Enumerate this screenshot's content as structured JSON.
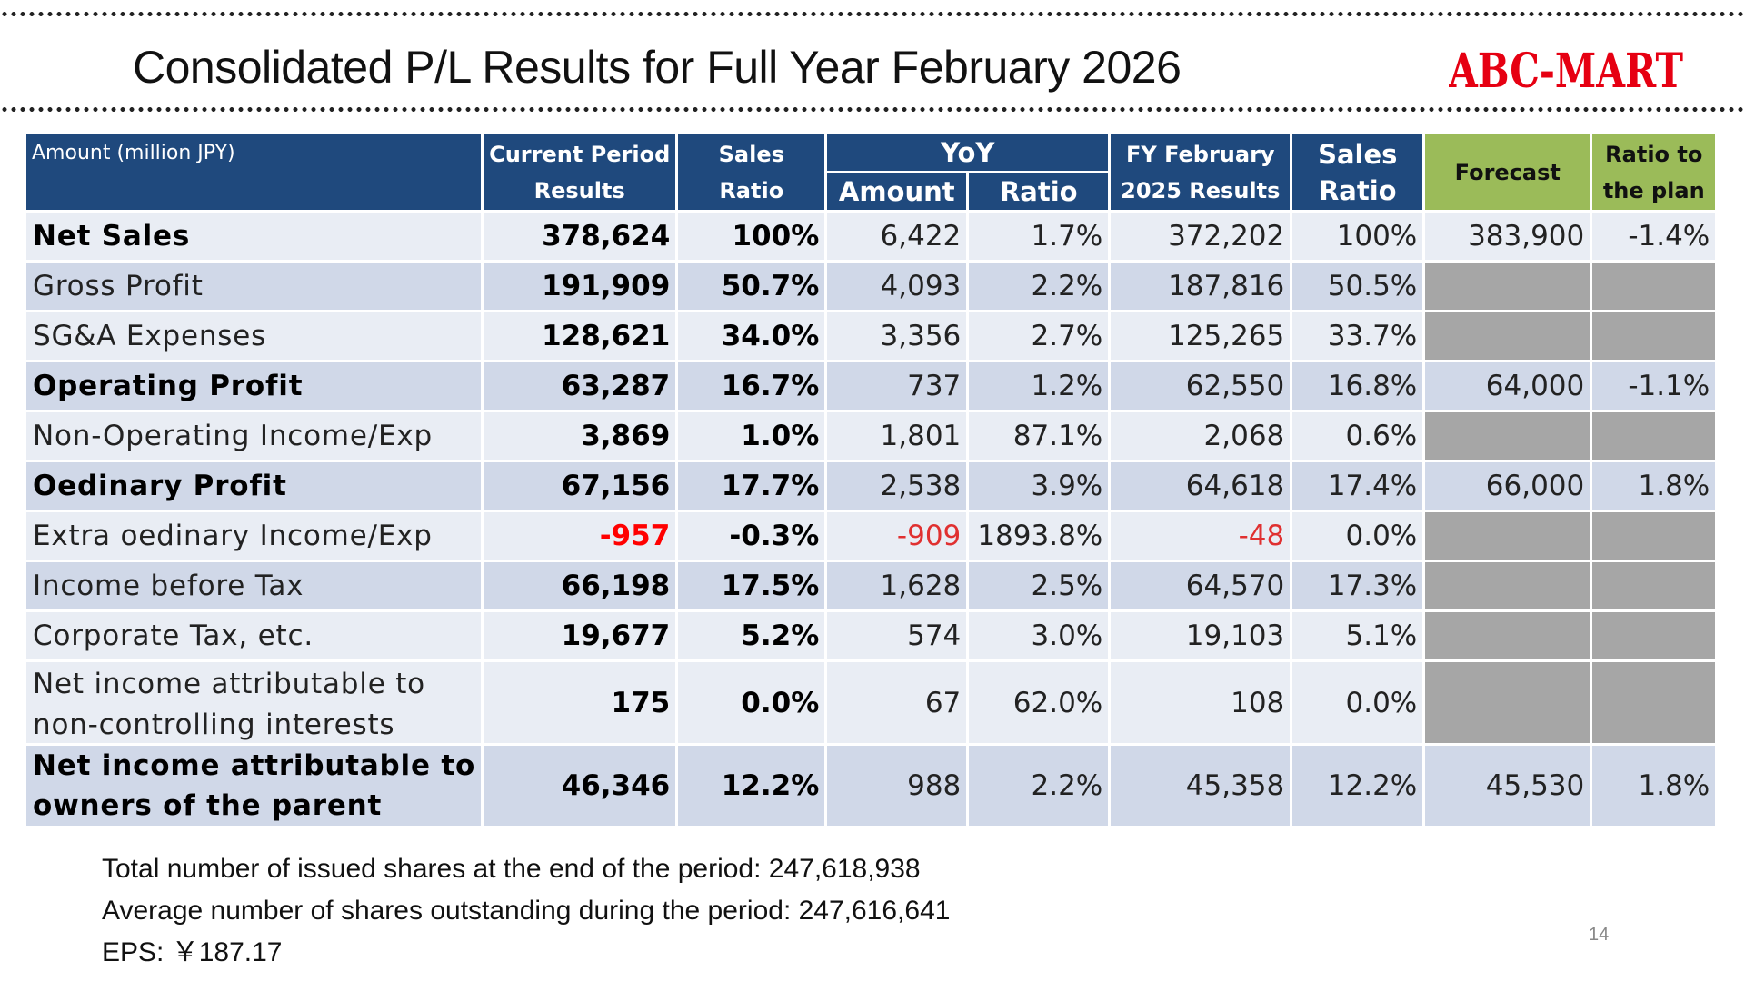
{
  "title": "Consolidated P/L Results for Full Year February 2026",
  "logo": {
    "text": "ABC-MART",
    "color": "#e60012"
  },
  "table": {
    "headers": {
      "amount_label": "Amount (million JPY)",
      "current_l1": "Current Period",
      "current_l2": "Results",
      "sales_ratio_l1": "Sales",
      "sales_ratio_l2": "Ratio",
      "yoy": "YoY",
      "yoy_amount": "Amount",
      "yoy_ratio": "Ratio",
      "fy_l1": "FY February",
      "fy_l2": "2025 Results",
      "sales_ratio2_l1": "Sales",
      "sales_ratio2_l2": "Ratio",
      "forecast": "Forecast",
      "ratio_plan_l1": "Ratio to",
      "ratio_plan_l2": "the plan"
    },
    "rows": [
      {
        "label": "Net Sales",
        "current": "378,624",
        "sales_ratio": "100%",
        "yoy_amount": "6,422",
        "yoy_ratio": "1.7%",
        "fy2025": "372,202",
        "fy_sales_ratio": "100%",
        "forecast": "383,900",
        "ratio_plan": "-1.4%"
      },
      {
        "label": "Gross Profit",
        "current": "191,909",
        "sales_ratio": "50.7%",
        "yoy_amount": "4,093",
        "yoy_ratio": "2.2%",
        "fy2025": "187,816",
        "fy_sales_ratio": "50.5%"
      },
      {
        "label": "SG&A Expenses",
        "current": "128,621",
        "sales_ratio": "34.0%",
        "yoy_amount": "3,356",
        "yoy_ratio": "2.7%",
        "fy2025": "125,265",
        "fy_sales_ratio": "33.7%"
      },
      {
        "label": "Operating Profit",
        "current": "63,287",
        "sales_ratio": "16.7%",
        "yoy_amount": "737",
        "yoy_ratio": "1.2%",
        "fy2025": "62,550",
        "fy_sales_ratio": "16.8%",
        "forecast": "64,000",
        "ratio_plan": "-1.1%"
      },
      {
        "label": "Non-Operating Income/Exp",
        "current": "3,869",
        "sales_ratio": "1.0%",
        "yoy_amount": "1,801",
        "yoy_ratio": "87.1%",
        "fy2025": "2,068",
        "fy_sales_ratio": "0.6%"
      },
      {
        "label": "Oedinary Profit",
        "current": "67,156",
        "sales_ratio": "17.7%",
        "yoy_amount": "2,538",
        "yoy_ratio": "3.9%",
        "fy2025": "64,618",
        "fy_sales_ratio": "17.4%",
        "forecast": "66,000",
        "ratio_plan": "1.8%"
      },
      {
        "label": "Extra oedinary Income/Exp",
        "current": "-957",
        "sales_ratio": "-0.3%",
        "yoy_amount": "-909",
        "yoy_ratio": "1893.8%",
        "fy2025": "-48",
        "fy_sales_ratio": "0.0%"
      },
      {
        "label": "Income before Tax",
        "current": "66,198",
        "sales_ratio": "17.5%",
        "yoy_amount": "1,628",
        "yoy_ratio": "2.5%",
        "fy2025": "64,570",
        "fy_sales_ratio": "17.3%"
      },
      {
        "label": "Corporate Tax, etc.",
        "current": "19,677",
        "sales_ratio": "5.2%",
        "yoy_amount": "574",
        "yoy_ratio": "3.0%",
        "fy2025": "19,103",
        "fy_sales_ratio": "5.1%"
      },
      {
        "label_l1": "Net income attributable to",
        "label_l2": "non-controlling interests",
        "current": "175",
        "sales_ratio": "0.0%",
        "yoy_amount": "67",
        "yoy_ratio": "62.0%",
        "fy2025": "108",
        "fy_sales_ratio": "0.0%"
      },
      {
        "label_l1": "Net income attributable to",
        "label_l2": "owners of the parent",
        "current": "46,346",
        "sales_ratio": "12.2%",
        "yoy_amount": "988",
        "yoy_ratio": "2.2%",
        "fy2025": "45,358",
        "fy_sales_ratio": "12.2%",
        "forecast": "45,530",
        "ratio_plan": "1.8%"
      }
    ]
  },
  "notes": {
    "issued_shares": "Total number of issued shares at the end of the period: 247,618,938",
    "avg_shares": "Average number of shares outstanding during the period: 247,616,641",
    "eps": "EPS: ￥187.17"
  },
  "page_number": "14",
  "colors": {
    "header_blue": "#1f497d",
    "header_green": "#9bbb59",
    "row_light": "#e9edf4",
    "row_dark": "#d0d8e8",
    "empty_gray": "#a6a6a6",
    "negative": "#ff0000"
  }
}
